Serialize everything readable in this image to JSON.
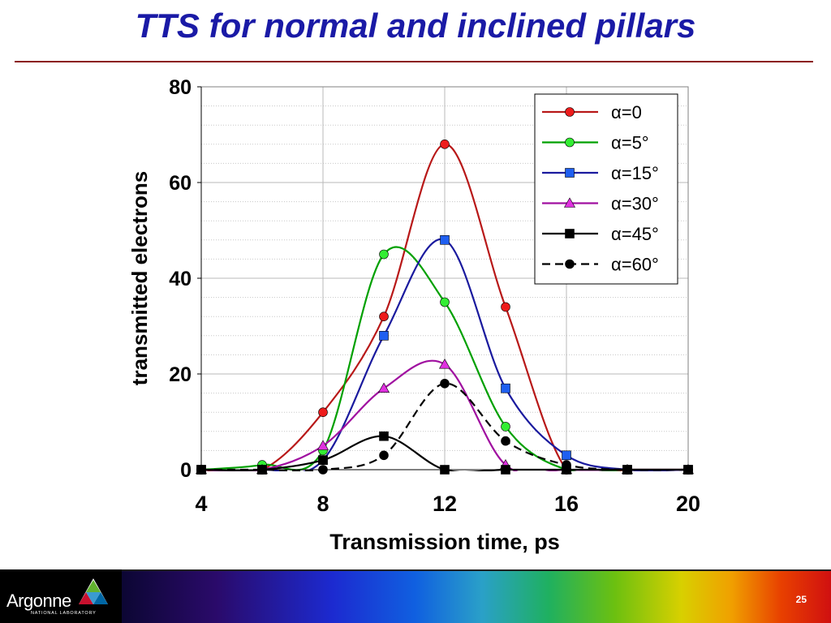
{
  "slide": {
    "title": "TTS for normal and inclined pillars",
    "page_number": "25"
  },
  "logo": {
    "name": "Argonne",
    "subtitle": "NATIONAL LABORATORY"
  },
  "chart_data": {
    "type": "line",
    "title": "",
    "xlabel": "Transmission time, ps",
    "ylabel": "transmitted electrons",
    "xlim": [
      4,
      20
    ],
    "ylim": [
      0,
      80
    ],
    "xticks": [
      4,
      8,
      12,
      16,
      20
    ],
    "yticks": [
      0,
      20,
      40,
      60,
      80
    ],
    "grid": true,
    "legend_position": "top-right",
    "x": [
      4,
      6,
      8,
      10,
      12,
      14,
      16,
      18,
      20
    ],
    "series": [
      {
        "name": "α=0",
        "alpha": "0",
        "color": "#b81818",
        "marker": "circle",
        "marker_color": "#ee1c1c",
        "dash": false,
        "values": [
          0,
          0,
          12,
          32,
          68,
          34,
          0,
          0,
          0
        ]
      },
      {
        "name": "α=5°",
        "alpha": "5",
        "color": "#00a000",
        "marker": "circle",
        "marker_color": "#33ee33",
        "dash": false,
        "values": [
          0,
          1,
          4,
          45,
          35,
          9,
          0,
          0,
          0
        ]
      },
      {
        "name": "α=15°",
        "alpha": "15",
        "color": "#1a1a9e",
        "marker": "square",
        "marker_color": "#1f5ff0",
        "dash": false,
        "values": [
          0,
          0,
          2,
          28,
          48,
          17,
          3,
          0,
          0
        ]
      },
      {
        "name": "α=30°",
        "alpha": "30",
        "color": "#a010a0",
        "marker": "triangle",
        "marker_color": "#e030e0",
        "dash": false,
        "values": [
          0,
          0,
          5,
          17,
          22,
          1,
          0,
          0,
          0
        ]
      },
      {
        "name": "α=45°",
        "alpha": "45",
        "color": "#000000",
        "marker": "square",
        "marker_color": "#000000",
        "dash": false,
        "values": [
          0,
          0,
          2,
          7,
          0,
          0,
          0,
          0,
          0
        ]
      },
      {
        "name": "α=60°",
        "alpha": "60",
        "color": "#000000",
        "marker": "circle",
        "marker_color": "#000000",
        "dash": true,
        "values": [
          0,
          0,
          0,
          3,
          18,
          6,
          1,
          0,
          0
        ]
      }
    ]
  }
}
